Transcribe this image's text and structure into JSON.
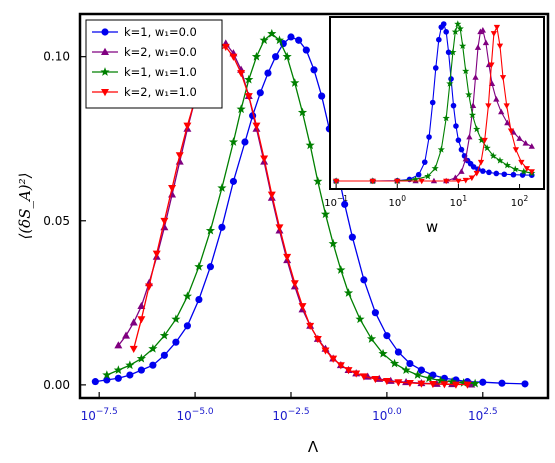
{
  "chart_data": [
    {
      "type": "line",
      "xlabel": "Λ",
      "ylabel": "⟨(δS_A)²⟩",
      "x_scale": "log",
      "xlim_log10": [
        -8.0,
        4.2
      ],
      "ylim": [
        -0.004,
        0.113
      ],
      "x_tick_exponents": [
        "−7.5",
        "−5.0",
        "−2.5",
        "0.0",
        "2.5"
      ],
      "x_tick_values_log10": [
        -7.5,
        -5.0,
        -2.5,
        0.0,
        2.5
      ],
      "y_ticks": [
        0.0,
        0.05,
        0.1
      ],
      "y_tick_labels": [
        "0.00",
        "0.05",
        "0.10"
      ],
      "legend_position": "top-left",
      "grid": false,
      "series": [
        {
          "name": "k=1, w₁=0.0",
          "color": "#0000ee",
          "marker": "circle",
          "x_log10": [
            -7.6,
            -7.3,
            -7.0,
            -6.7,
            -6.4,
            -6.1,
            -5.8,
            -5.5,
            -5.2,
            -4.9,
            -4.6,
            -4.3,
            -4.0,
            -3.7,
            -3.5,
            -3.3,
            -3.1,
            -2.9,
            -2.7,
            -2.5,
            -2.3,
            -2.1,
            -1.9,
            -1.7,
            -1.5,
            -1.3,
            -1.1,
            -0.9,
            -0.6,
            -0.3,
            0.0,
            0.3,
            0.6,
            0.9,
            1.2,
            1.5,
            1.8,
            2.1,
            2.5,
            3.0,
            3.6
          ],
          "y": [
            0.001,
            0.0015,
            0.002,
            0.003,
            0.0045,
            0.006,
            0.009,
            0.013,
            0.018,
            0.026,
            0.036,
            0.048,
            0.062,
            0.074,
            0.082,
            0.089,
            0.095,
            0.1,
            0.104,
            0.106,
            0.105,
            0.102,
            0.096,
            0.088,
            0.078,
            0.066,
            0.055,
            0.045,
            0.032,
            0.022,
            0.015,
            0.01,
            0.0065,
            0.0045,
            0.003,
            0.002,
            0.0015,
            0.001,
            0.0008,
            0.0005,
            0.0003
          ]
        },
        {
          "name": "k=2, w₁=0.0",
          "color": "#800080",
          "marker": "triangle-up",
          "x_log10": [
            -7.0,
            -6.8,
            -6.6,
            -6.4,
            -6.2,
            -6.0,
            -5.8,
            -5.6,
            -5.4,
            -5.2,
            -5.0,
            -4.8,
            -4.6,
            -4.4,
            -4.2,
            -4.0,
            -3.8,
            -3.6,
            -3.4,
            -3.2,
            -3.0,
            -2.8,
            -2.6,
            -2.4,
            -2.2,
            -2.0,
            -1.8,
            -1.6,
            -1.4,
            -1.2,
            -1.0,
            -0.8,
            -0.5,
            -0.2,
            0.1,
            0.5,
            0.9,
            1.3,
            1.7,
            2.2
          ],
          "y": [
            0.012,
            0.015,
            0.019,
            0.024,
            0.031,
            0.039,
            0.048,
            0.058,
            0.068,
            0.078,
            0.087,
            0.094,
            0.1,
            0.103,
            0.104,
            0.101,
            0.096,
            0.088,
            0.078,
            0.068,
            0.057,
            0.047,
            0.038,
            0.03,
            0.023,
            0.018,
            0.014,
            0.011,
            0.008,
            0.006,
            0.0045,
            0.0035,
            0.0025,
            0.0018,
            0.0012,
            0.0008,
            0.0005,
            0.0003,
            0.0002,
            0.0001
          ]
        },
        {
          "name": "k=1, w₁=1.0",
          "color": "#008000",
          "marker": "star",
          "x_log10": [
            -7.3,
            -7.0,
            -6.7,
            -6.4,
            -6.1,
            -5.8,
            -5.5,
            -5.2,
            -4.9,
            -4.6,
            -4.3,
            -4.0,
            -3.8,
            -3.6,
            -3.4,
            -3.2,
            -3.0,
            -2.8,
            -2.6,
            -2.4,
            -2.2,
            -2.0,
            -1.8,
            -1.6,
            -1.4,
            -1.2,
            -1.0,
            -0.7,
            -0.4,
            -0.1,
            0.2,
            0.5,
            0.8,
            1.1,
            1.4,
            1.7,
            2.0,
            2.3
          ],
          "y": [
            0.003,
            0.0045,
            0.006,
            0.008,
            0.011,
            0.015,
            0.02,
            0.027,
            0.036,
            0.047,
            0.06,
            0.074,
            0.084,
            0.093,
            0.1,
            0.105,
            0.107,
            0.105,
            0.1,
            0.092,
            0.083,
            0.073,
            0.062,
            0.052,
            0.043,
            0.035,
            0.028,
            0.02,
            0.014,
            0.0095,
            0.0065,
            0.0045,
            0.003,
            0.002,
            0.0013,
            0.0009,
            0.0006,
            0.0004
          ]
        },
        {
          "name": "k=2, w₁=1.0",
          "color": "#ff0000",
          "marker": "triangle-down",
          "x_log10": [
            -6.6,
            -6.4,
            -6.2,
            -6.0,
            -5.8,
            -5.6,
            -5.4,
            -5.2,
            -5.0,
            -4.8,
            -4.6,
            -4.4,
            -4.2,
            -4.0,
            -3.8,
            -3.6,
            -3.4,
            -3.2,
            -3.0,
            -2.8,
            -2.6,
            -2.4,
            -2.2,
            -2.0,
            -1.8,
            -1.6,
            -1.4,
            -1.2,
            -1.0,
            -0.8,
            -0.6,
            -0.3,
            0.0,
            0.3,
            0.6,
            0.9,
            1.2,
            1.5,
            1.8,
            2.1
          ],
          "y": [
            0.011,
            0.02,
            0.03,
            0.04,
            0.05,
            0.06,
            0.07,
            0.079,
            0.087,
            0.094,
            0.099,
            0.102,
            0.103,
            0.1,
            0.095,
            0.088,
            0.079,
            0.069,
            0.058,
            0.048,
            0.039,
            0.031,
            0.024,
            0.018,
            0.014,
            0.0105,
            0.008,
            0.006,
            0.0045,
            0.0035,
            0.0026,
            0.0018,
            0.0012,
            0.0008,
            0.0006,
            0.0004,
            0.0003,
            0.0002,
            0.0001,
            0.0001
          ]
        }
      ]
    },
    {
      "type": "line",
      "xlabel": "w",
      "ylabel": "",
      "x_scale": "log",
      "xlim_log10": [
        -1.1,
        2.4
      ],
      "x_tick_exponents": [
        "−1",
        "0",
        "1",
        "2"
      ],
      "x_tick_values_log10": [
        -1,
        0,
        1,
        2
      ],
      "grid": false,
      "series": [
        {
          "name": "k=1, w₁=0.0",
          "color": "#0000ee",
          "marker": "circle",
          "x_log10": [
            -1.0,
            -0.4,
            0.0,
            0.2,
            0.35,
            0.45,
            0.52,
            0.58,
            0.63,
            0.68,
            0.72,
            0.76,
            0.8,
            0.84,
            0.88,
            0.92,
            0.96,
            1.0,
            1.05,
            1.1,
            1.15,
            1.2,
            1.25,
            1.32,
            1.4,
            1.5,
            1.62,
            1.75,
            1.9,
            2.05,
            2.2
          ],
          "y_relative": [
            0.0,
            0.0,
            0.002,
            0.01,
            0.04,
            0.12,
            0.28,
            0.5,
            0.72,
            0.9,
            0.98,
            1.0,
            0.95,
            0.82,
            0.65,
            0.48,
            0.35,
            0.26,
            0.2,
            0.16,
            0.13,
            0.11,
            0.09,
            0.075,
            0.063,
            0.055,
            0.048,
            0.043,
            0.04,
            0.038,
            0.037
          ]
        },
        {
          "name": "k=2, w₁=0.0",
          "color": "#800080",
          "marker": "triangle-up",
          "x_log10": [
            -1.0,
            -0.4,
            0.0,
            0.3,
            0.6,
            0.8,
            0.95,
            1.05,
            1.12,
            1.18,
            1.24,
            1.28,
            1.32,
            1.36,
            1.4,
            1.45,
            1.5,
            1.55,
            1.62,
            1.7,
            1.8,
            1.9,
            2.0,
            2.1,
            2.2
          ],
          "y_relative": [
            0.0,
            0.0,
            0.0,
            0.0,
            0.0,
            0.0,
            0.02,
            0.06,
            0.14,
            0.28,
            0.48,
            0.66,
            0.85,
            0.95,
            0.96,
            0.88,
            0.74,
            0.62,
            0.52,
            0.44,
            0.37,
            0.31,
            0.27,
            0.24,
            0.22
          ]
        },
        {
          "name": "k=1, w₁=1.0",
          "color": "#008000",
          "marker": "star",
          "x_log10": [
            -1.0,
            -0.4,
            0.0,
            0.3,
            0.5,
            0.62,
            0.72,
            0.8,
            0.86,
            0.91,
            0.95,
            0.99,
            1.03,
            1.07,
            1.12,
            1.17,
            1.23,
            1.3,
            1.38,
            1.47,
            1.57,
            1.68,
            1.8,
            1.93,
            2.07,
            2.2
          ],
          "y_relative": [
            0.0,
            0.0,
            0.0,
            0.01,
            0.03,
            0.08,
            0.2,
            0.4,
            0.62,
            0.82,
            0.95,
            1.0,
            0.97,
            0.86,
            0.7,
            0.55,
            0.42,
            0.33,
            0.26,
            0.21,
            0.16,
            0.13,
            0.1,
            0.075,
            0.06,
            0.05
          ]
        },
        {
          "name": "k=2, w₁=1.0",
          "color": "#ff0000",
          "marker": "triangle-down",
          "x_log10": [
            -1.0,
            -0.4,
            0.0,
            0.4,
            0.8,
            1.0,
            1.12,
            1.22,
            1.3,
            1.37,
            1.43,
            1.49,
            1.54,
            1.58,
            1.63,
            1.68,
            1.73,
            1.79,
            1.86,
            1.94,
            2.03,
            2.12,
            2.2
          ],
          "y_relative": [
            0.0,
            0.0,
            0.0,
            0.0,
            0.0,
            0.0,
            0.005,
            0.02,
            0.05,
            0.12,
            0.26,
            0.48,
            0.74,
            0.94,
            0.98,
            0.86,
            0.66,
            0.48,
            0.32,
            0.2,
            0.12,
            0.08,
            0.06
          ]
        }
      ]
    }
  ]
}
